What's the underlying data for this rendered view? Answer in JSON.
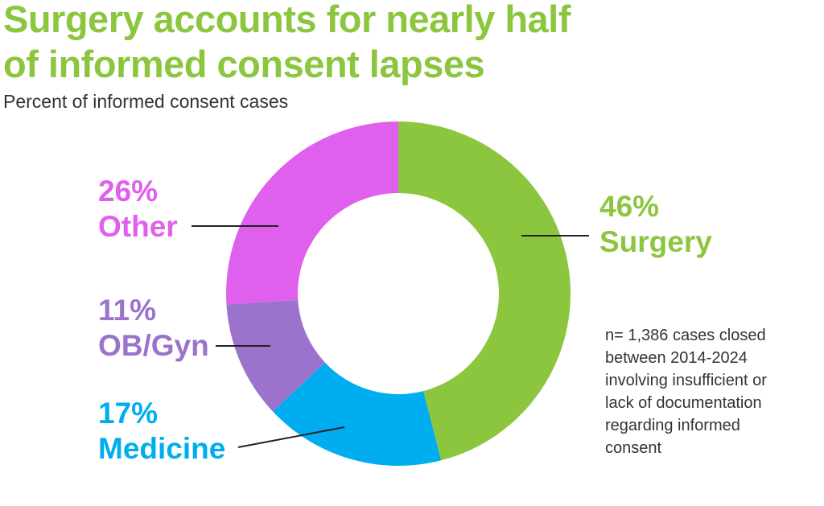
{
  "title": "Surgery accounts for nearly half of informed consent lapses",
  "subtitle": "Percent of informed consent cases",
  "note": "n= 1,386 cases closed\nbetween 2014-2024\ninvolving insufficient or\nlack of documentation\nregarding informed\nconsent",
  "colors": {
    "title": "#8CC63F",
    "subtitle": "#333333",
    "note": "#333333",
    "leader": "#222222"
  },
  "chart_data": {
    "type": "pie",
    "variant": "donut",
    "slices": [
      {
        "label": "Surgery",
        "pct_label": "46%",
        "value": 46,
        "color": "#8CC63F"
      },
      {
        "label": "Medicine",
        "pct_label": "17%",
        "value": 17,
        "color": "#00AEEF"
      },
      {
        "label": "OB/Gyn",
        "pct_label": "11%",
        "value": 11,
        "color": "#9B72CC"
      },
      {
        "label": "Other",
        "pct_label": "26%",
        "value": 26,
        "color": "#E060EE"
      }
    ],
    "start": "top",
    "direction": "clockwise"
  }
}
